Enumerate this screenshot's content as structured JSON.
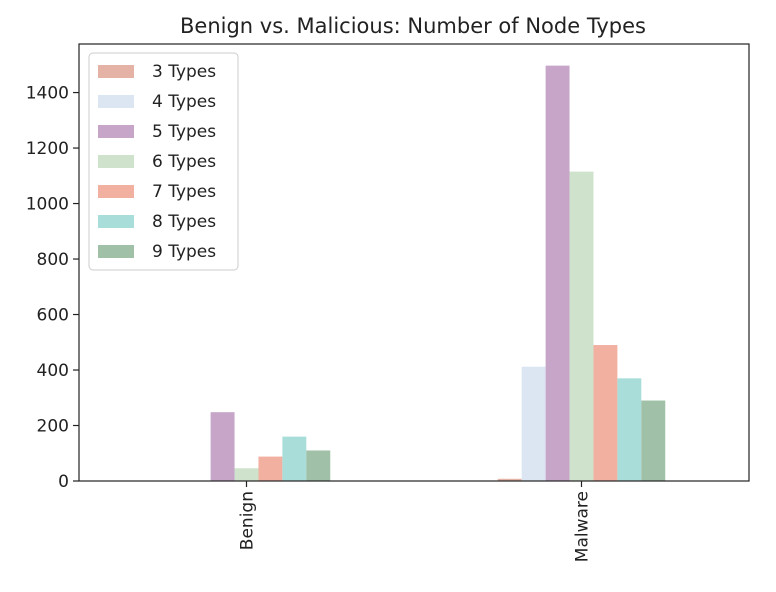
{
  "chart_data": {
    "type": "bar",
    "title": "Benign vs. Malicious: Number of Node Types",
    "xlabel": "",
    "ylabel": "",
    "categories": [
      "Benign",
      "Malware"
    ],
    "series": [
      {
        "name": "3 Types",
        "color": "#e5b3a5",
        "values": [
          0,
          8
        ]
      },
      {
        "name": "4 Types",
        "color": "#dce6f2",
        "values": [
          0,
          412
        ]
      },
      {
        "name": "5 Types",
        "color": "#c6a5c9",
        "values": [
          248,
          1497
        ]
      },
      {
        "name": "6 Types",
        "color": "#cfe2cc",
        "values": [
          46,
          1115
        ]
      },
      {
        "name": "7 Types",
        "color": "#f2b0a0",
        "values": [
          88,
          490
        ]
      },
      {
        "name": "8 Types",
        "color": "#a8ddd9",
        "values": [
          160,
          370
        ]
      },
      {
        "name": "9 Types",
        "color": "#a0c0a8",
        "values": [
          110,
          290
        ]
      }
    ],
    "ylim": [
      0,
      1575
    ],
    "yticks": [
      0,
      200,
      400,
      600,
      800,
      1000,
      1200,
      1400
    ],
    "grid": false,
    "legend_position": "top-left",
    "xtick_rotation": "vertical"
  }
}
